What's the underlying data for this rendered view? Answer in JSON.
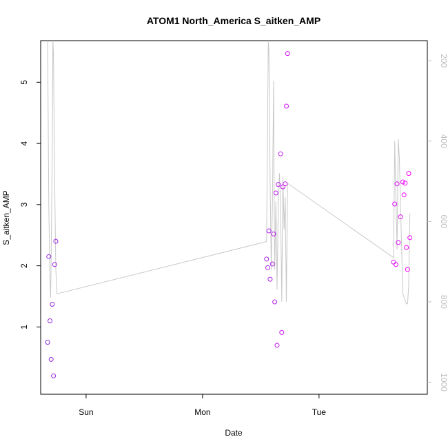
{
  "chart_data": {
    "type": "scatter",
    "title": "ATOM1 North_America S_aitken_AMP",
    "xlabel": "Date",
    "ylabel": "S_aitken_AMP",
    "x_ticks": [
      "Sun",
      "Mon",
      "Tue"
    ],
    "y_ticks": [
      1,
      2,
      3,
      4,
      5
    ],
    "y2_ticks": [
      200,
      400,
      600,
      800,
      1000
    ],
    "x_units": "days from Sun 00:00",
    "xlim": [
      -0.39,
      2.93
    ],
    "ylim": [
      -0.1,
      5.68
    ],
    "y2lim": [
      1030,
      150
    ],
    "point_color_start": "#8a2be2",
    "point_color_end": "#ff00ff",
    "line_color": "#c8c8c8",
    "points": [
      {
        "x": -0.33,
        "y": 0.75
      },
      {
        "x": -0.32,
        "y": 2.15
      },
      {
        "x": -0.31,
        "y": 1.1
      },
      {
        "x": -0.3,
        "y": 0.47
      },
      {
        "x": -0.29,
        "y": 1.37
      },
      {
        "x": -0.28,
        "y": 0.2
      },
      {
        "x": -0.27,
        "y": 2.02
      },
      {
        "x": -0.26,
        "y": 2.4
      },
      {
        "x": 1.55,
        "y": 2.11
      },
      {
        "x": 1.56,
        "y": 1.97
      },
      {
        "x": 1.57,
        "y": 2.57
      },
      {
        "x": 1.58,
        "y": 1.78
      },
      {
        "x": 1.6,
        "y": 2.03
      },
      {
        "x": 1.61,
        "y": 2.52
      },
      {
        "x": 1.62,
        "y": 1.41
      },
      {
        "x": 1.63,
        "y": 3.19
      },
      {
        "x": 1.64,
        "y": 0.7
      },
      {
        "x": 1.65,
        "y": 3.33
      },
      {
        "x": 1.67,
        "y": 3.83
      },
      {
        "x": 1.68,
        "y": 0.91
      },
      {
        "x": 1.69,
        "y": 3.29
      },
      {
        "x": 1.71,
        "y": 3.34
      },
      {
        "x": 1.72,
        "y": 4.61
      },
      {
        "x": 1.73,
        "y": 5.47
      },
      {
        "x": 2.64,
        "y": 2.06
      },
      {
        "x": 2.65,
        "y": 3.01
      },
      {
        "x": 2.66,
        "y": 2.02
      },
      {
        "x": 2.67,
        "y": 3.34
      },
      {
        "x": 2.68,
        "y": 2.38
      },
      {
        "x": 2.7,
        "y": 2.8
      },
      {
        "x": 2.72,
        "y": 3.37
      },
      {
        "x": 2.73,
        "y": 3.16
      },
      {
        "x": 2.74,
        "y": 3.35
      },
      {
        "x": 2.75,
        "y": 2.3
      },
      {
        "x": 2.76,
        "y": 1.94
      },
      {
        "x": 2.77,
        "y": 3.51
      },
      {
        "x": 2.78,
        "y": 2.46
      }
    ],
    "line": [
      {
        "x": -0.33,
        "y2": 150
      },
      {
        "x": -0.32,
        "y2": 560
      },
      {
        "x": -0.31,
        "y2": 740
      },
      {
        "x": -0.305,
        "y2": 790
      },
      {
        "x": -0.3,
        "y2": 700
      },
      {
        "x": -0.29,
        "y2": 400
      },
      {
        "x": -0.285,
        "y2": 150
      },
      {
        "x": -0.28,
        "y2": 180
      },
      {
        "x": -0.27,
        "y2": 500
      },
      {
        "x": -0.26,
        "y2": 720
      },
      {
        "x": -0.25,
        "y2": 780
      },
      {
        "x": 1.55,
        "y2": 650
      },
      {
        "x": 1.56,
        "y2": 300
      },
      {
        "x": 1.565,
        "y2": 150
      },
      {
        "x": 1.57,
        "y2": 180
      },
      {
        "x": 1.58,
        "y2": 500
      },
      {
        "x": 1.59,
        "y2": 720
      },
      {
        "x": 1.6,
        "y2": 550
      },
      {
        "x": 1.61,
        "y2": 250
      },
      {
        "x": 1.615,
        "y2": 550
      },
      {
        "x": 1.62,
        "y2": 720
      },
      {
        "x": 1.63,
        "y2": 550
      },
      {
        "x": 1.64,
        "y2": 770
      },
      {
        "x": 1.65,
        "y2": 560
      },
      {
        "x": 1.66,
        "y2": 480
      },
      {
        "x": 1.67,
        "y2": 560
      },
      {
        "x": 1.68,
        "y2": 800
      },
      {
        "x": 1.69,
        "y2": 490
      },
      {
        "x": 1.7,
        "y2": 620
      },
      {
        "x": 1.71,
        "y2": 540
      },
      {
        "x": 1.72,
        "y2": 800
      },
      {
        "x": 1.73,
        "y2": 505
      },
      {
        "x": 2.64,
        "y2": 690
      },
      {
        "x": 2.65,
        "y2": 400
      },
      {
        "x": 2.66,
        "y2": 540
      },
      {
        "x": 2.67,
        "y2": 670
      },
      {
        "x": 2.68,
        "y2": 395
      },
      {
        "x": 2.69,
        "y2": 440
      },
      {
        "x": 2.7,
        "y2": 560
      },
      {
        "x": 2.72,
        "y2": 780
      },
      {
        "x": 2.75,
        "y2": 805
      },
      {
        "x": 2.76,
        "y2": 805
      },
      {
        "x": 2.77,
        "y2": 760
      },
      {
        "x": 2.78,
        "y2": 580
      }
    ]
  }
}
